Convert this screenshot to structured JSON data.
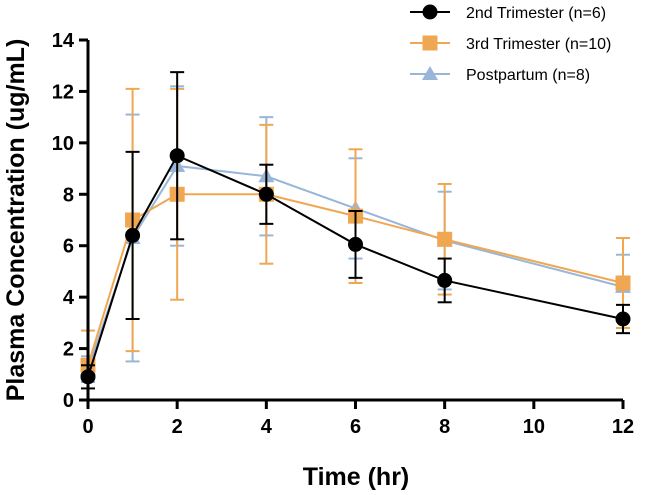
{
  "chart_data": {
    "type": "line",
    "xlabel": "Time (hr)",
    "ylabel": "Plasma Concentration (ug/mL)",
    "xlim": [
      0,
      12
    ],
    "ylim": [
      0,
      14
    ],
    "x_ticks": [
      0,
      2,
      4,
      6,
      8,
      10,
      12
    ],
    "y_ticks": [
      0,
      2,
      4,
      6,
      8,
      10,
      12,
      14
    ],
    "grid": false,
    "legend_position": "top-right",
    "series": [
      {
        "name": "2nd Trimester (n=6)",
        "color": "#000000",
        "marker": "circle",
        "x": [
          0,
          1,
          2,
          4,
          6,
          8,
          12
        ],
        "y": [
          0.9,
          6.4,
          9.5,
          8.0,
          6.05,
          4.65,
          3.15
        ],
        "err": [
          0.45,
          3.25,
          3.25,
          1.15,
          1.3,
          0.85,
          0.55
        ]
      },
      {
        "name": "3rd Trimester (n=10)",
        "color": "#f0a752",
        "marker": "square",
        "x": [
          0,
          1,
          2,
          4,
          6,
          8,
          12
        ],
        "y": [
          1.35,
          7.0,
          8.0,
          8.0,
          7.15,
          6.25,
          4.55
        ],
        "err": [
          1.35,
          5.1,
          4.1,
          2.7,
          2.6,
          2.15,
          1.75
        ]
      },
      {
        "name": "Postpartum (n=8)",
        "color": "#99b6d9",
        "marker": "triangle",
        "x": [
          0,
          1,
          2,
          4,
          6,
          8,
          12
        ],
        "y": [
          1.2,
          6.3,
          9.1,
          8.7,
          7.45,
          6.2,
          4.4
        ],
        "err": [
          0.5,
          4.8,
          3.1,
          2.3,
          1.95,
          1.9,
          1.25
        ]
      }
    ]
  }
}
